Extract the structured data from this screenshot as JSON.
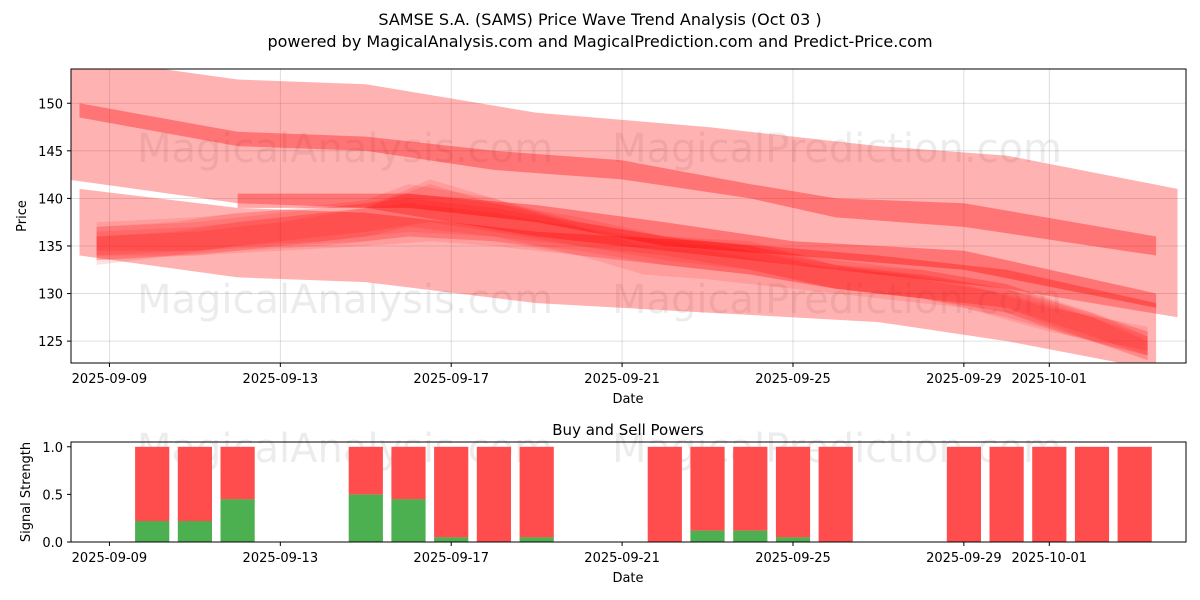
{
  "chart_data": [
    {
      "type": "area",
      "title_line1": "SAMSE S.A. (SAMS) Price Wave Trend Analysis (Oct 03 )",
      "title_line2": "powered by MagicalAnalysis.com and MagicalPrediction.com and Predict-Price.com",
      "xlabel": "Date",
      "ylabel": "Price",
      "xlim": [
        -0.9,
        25.2
      ],
      "ylim": [
        122.7,
        153.6
      ],
      "y_ticks": [
        125,
        130,
        135,
        140,
        145,
        150
      ],
      "x_ticks": [
        {
          "pos": 0,
          "label": "2025-09-09"
        },
        {
          "pos": 4,
          "label": "2025-09-13"
        },
        {
          "pos": 8,
          "label": "2025-09-17"
        },
        {
          "pos": 12,
          "label": "2025-09-21"
        },
        {
          "pos": 16,
          "label": "2025-09-25"
        },
        {
          "pos": 20,
          "label": "2025-09-29"
        },
        {
          "pos": 22,
          "label": "2025-10-01"
        }
      ],
      "watermarks": [
        "MagicalAnalysis.com",
        "MagicalPrediction.com",
        "MagicalAnalysis.com",
        "MagicalPrediction.com"
      ],
      "color": "#ff0000",
      "series": [
        {
          "name": "wide band upper",
          "x": [
            -1,
            3,
            6,
            10,
            14,
            18,
            21,
            25
          ],
          "lower": [
            142,
            139.5,
            139,
            136,
            134,
            132,
            130.5,
            127.5
          ],
          "upper": [
            155,
            152.5,
            152,
            149,
            147.5,
            145.5,
            144.5,
            141
          ]
        },
        {
          "name": "wide band lower",
          "x": [
            -0.7,
            3,
            6,
            10,
            14,
            18,
            21,
            24.5
          ],
          "lower": [
            134,
            131.7,
            131.2,
            129,
            128,
            127,
            125,
            122
          ],
          "upper": [
            141,
            139,
            138.5,
            136.5,
            135.5,
            134,
            132.5,
            129
          ]
        },
        {
          "name": "trend line upper",
          "x": [
            -0.7,
            3,
            6,
            9,
            12,
            15,
            17,
            20,
            24.5
          ],
          "lower": [
            148.5,
            145.5,
            145,
            143,
            142,
            140,
            138,
            137,
            134
          ],
          "upper": [
            150,
            147,
            146.5,
            145,
            144,
            141.5,
            140,
            139.5,
            136
          ]
        },
        {
          "name": "trend line lower",
          "x": [
            3,
            7,
            10,
            13,
            16,
            20,
            24.5
          ],
          "lower": [
            139,
            139,
            137.5,
            135,
            134,
            132.5,
            128.5
          ],
          "upper": [
            140.5,
            140.5,
            139.3,
            137.5,
            135.5,
            134.5,
            130
          ]
        },
        {
          "name": "wave 1",
          "x": [
            -0.3,
            1.5,
            3,
            5,
            7,
            9,
            11,
            13,
            15,
            17,
            19,
            21,
            23,
            24.3
          ],
          "lower": [
            133,
            134,
            135,
            135.5,
            136.5,
            136,
            135,
            133.5,
            132.5,
            130.5,
            129.5,
            127.5,
            125,
            123
          ],
          "upper": [
            137,
            137.5,
            138.5,
            139,
            140,
            139,
            137.5,
            136,
            135,
            133,
            132,
            130.5,
            128,
            126
          ]
        },
        {
          "name": "wave 2",
          "x": [
            -0.3,
            2,
            4,
            6,
            7.5,
            9,
            11,
            13,
            15,
            17,
            19,
            21,
            23,
            24.3
          ],
          "lower": [
            134,
            134.5,
            135.5,
            136.5,
            137.5,
            136.5,
            135,
            134,
            132.5,
            130.5,
            129.5,
            128,
            125,
            123.5
          ],
          "upper": [
            136.5,
            137,
            138,
            139,
            141.5,
            139.5,
            137.5,
            136,
            134.5,
            133,
            131.5,
            130,
            127.5,
            125.5
          ]
        },
        {
          "name": "wave 3",
          "x": [
            -0.3,
            1.5,
            3,
            5,
            7,
            9,
            11,
            12.5,
            14,
            16,
            18,
            20,
            22,
            24.3
          ],
          "lower": [
            133.5,
            134,
            134.5,
            135,
            136,
            135.5,
            134,
            132,
            131.5,
            130.5,
            129.5,
            128.5,
            126,
            124
          ],
          "upper": [
            136,
            136.5,
            137.5,
            138.5,
            139.5,
            138.5,
            137,
            135,
            134.5,
            133,
            132.5,
            131,
            128.5,
            126.5
          ]
        },
        {
          "name": "wave 4",
          "x": [
            -0.3,
            2,
            4,
            6,
            7,
            9,
            11,
            13,
            15,
            17,
            19,
            21,
            22.5,
            24.3
          ],
          "lower": [
            134.5,
            134.5,
            135,
            136,
            137,
            136,
            134,
            133,
            132,
            130.5,
            129.5,
            128,
            125.5,
            123.5
          ],
          "upper": [
            137.5,
            138,
            138.8,
            139.8,
            141.5,
            140,
            137.5,
            136,
            135.5,
            133,
            132.5,
            131,
            128.5,
            126
          ]
        },
        {
          "name": "wave 5",
          "x": [
            -0.3,
            2,
            4,
            6,
            7.5,
            9,
            11,
            13,
            15,
            17,
            19,
            21,
            23,
            24.3
          ],
          "lower": [
            134,
            134,
            134.5,
            135,
            135.5,
            135,
            134,
            133,
            132,
            130.5,
            129.5,
            128.5,
            125.5,
            123.5
          ],
          "upper": [
            136,
            136.5,
            137.5,
            139,
            142,
            140,
            137,
            135.5,
            134.5,
            132.5,
            132,
            130.5,
            127.5,
            125
          ]
        },
        {
          "name": "wave 6",
          "x": [
            -0.3,
            2,
            4,
            6,
            7,
            9,
            11,
            13,
            15,
            17,
            19,
            21,
            23,
            24.3
          ],
          "lower": [
            133.5,
            134,
            135,
            135.5,
            136,
            135.5,
            134.5,
            133,
            132,
            130.5,
            129.5,
            128.5,
            125,
            123
          ],
          "upper": [
            137,
            137.5,
            138.5,
            139.5,
            140.5,
            139.5,
            138,
            136,
            135,
            133.5,
            132.5,
            131,
            128,
            125.5
          ]
        }
      ]
    },
    {
      "type": "bar",
      "title": "Buy and Sell Powers",
      "xlabel": "Date",
      "ylabel": "Signal Strength",
      "xlim": [
        -0.9,
        25.2
      ],
      "ylim": [
        0,
        1.05
      ],
      "y_ticks": [
        0.0,
        0.5,
        1.0
      ],
      "y_tick_labels": [
        "0.0",
        "0.5",
        "1.0"
      ],
      "x_ticks": [
        {
          "pos": 0,
          "label": "2025-09-09"
        },
        {
          "pos": 4,
          "label": "2025-09-13"
        },
        {
          "pos": 8,
          "label": "2025-09-17"
        },
        {
          "pos": 12,
          "label": "2025-09-21"
        },
        {
          "pos": 16,
          "label": "2025-09-25"
        },
        {
          "pos": 20,
          "label": "2025-09-29"
        },
        {
          "pos": 22,
          "label": "2025-10-01"
        }
      ],
      "watermarks": [
        "MagicalAnalysis.com",
        "MagicalPrediction.com"
      ],
      "colors": {
        "buy": "#4caf50",
        "sell": "#ff4c4c"
      },
      "x": [
        1,
        2,
        3,
        6,
        7,
        8,
        9,
        10,
        13,
        14,
        15,
        16,
        17,
        20,
        21,
        22,
        23,
        24
      ],
      "buy": [
        0.22,
        0.22,
        0.45,
        0.5,
        0.45,
        0.05,
        0.0,
        0.05,
        0.0,
        0.12,
        0.12,
        0.05,
        0.0,
        0.0,
        0.0,
        0.0,
        0.0,
        0.0
      ],
      "sell": [
        0.78,
        0.78,
        0.55,
        0.5,
        0.55,
        0.95,
        1.0,
        0.95,
        1.0,
        0.88,
        0.88,
        0.95,
        1.0,
        1.0,
        1.0,
        1.0,
        1.0,
        1.0
      ]
    }
  ]
}
